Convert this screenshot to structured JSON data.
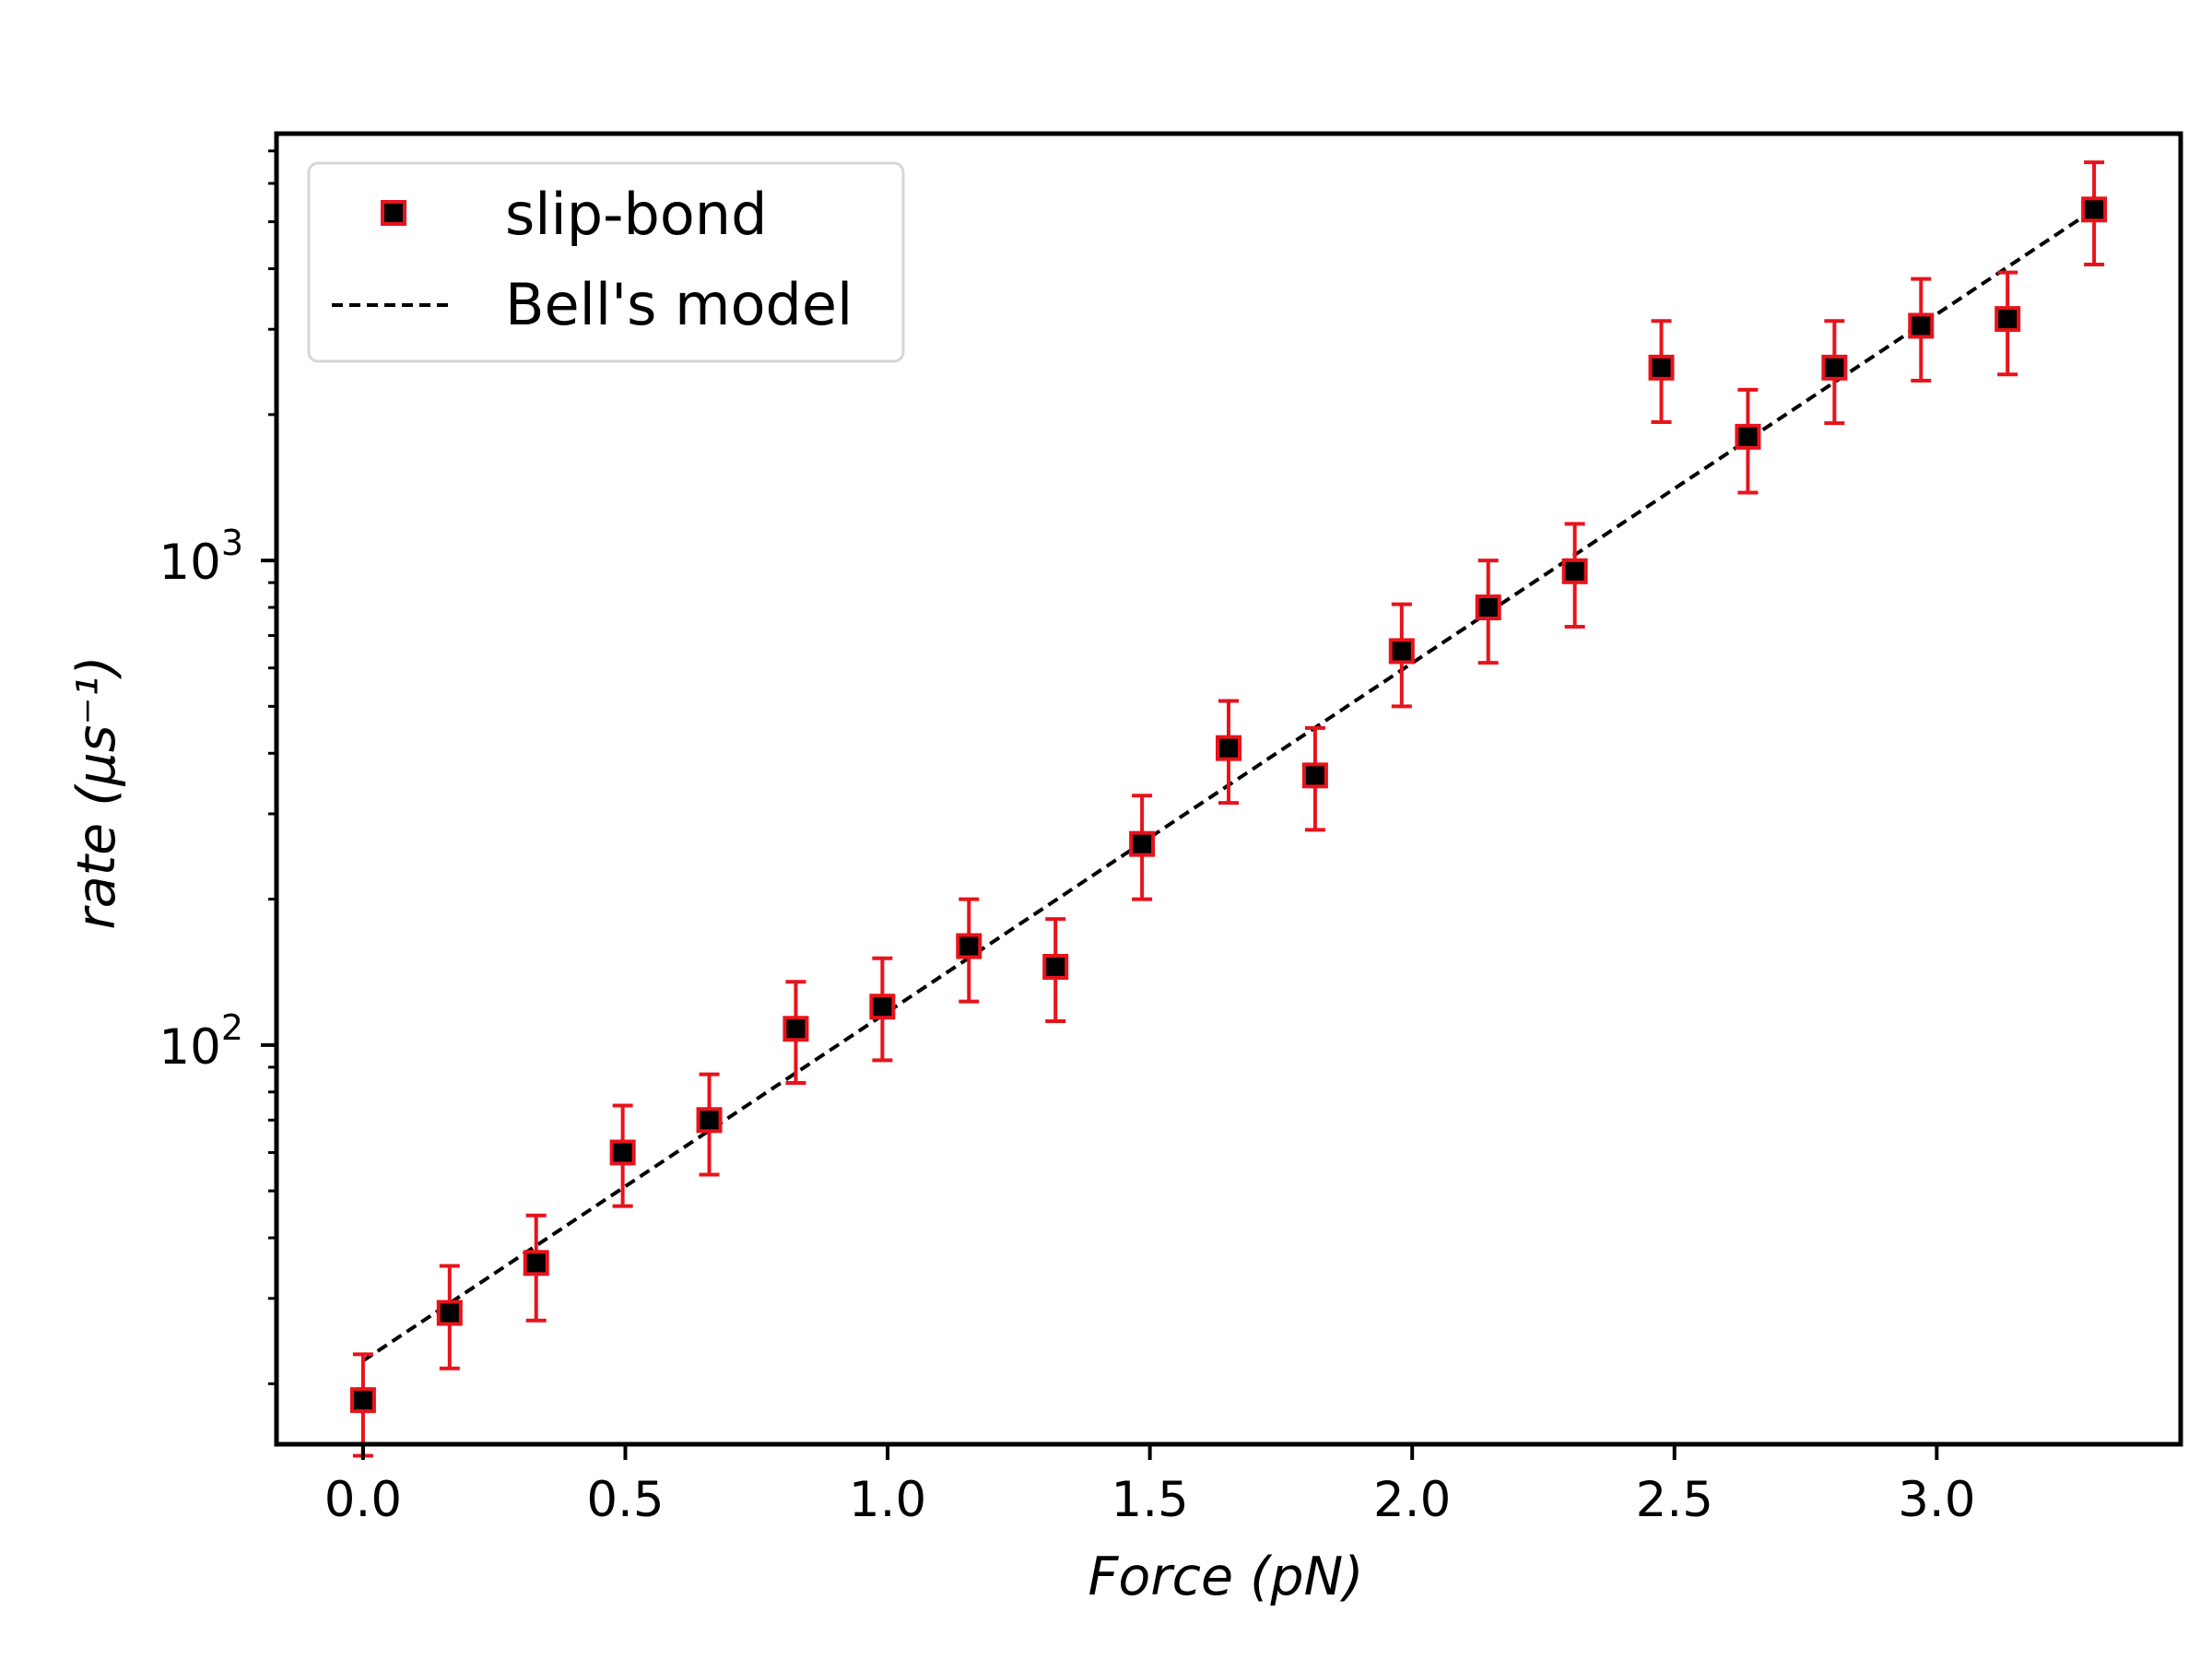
{
  "chart_data": {
    "type": "scatter",
    "title": "",
    "xlabel": "Force (pN)",
    "ylabel": "rate (μs⁻¹)",
    "xlim": [
      -0.165,
      3.465
    ],
    "ylim": [
      15,
      7600
    ],
    "yscale": "log",
    "x_ticks": [
      0.0,
      0.5,
      1.0,
      1.5,
      2.0,
      2.5,
      3.0
    ],
    "x_tick_labels": [
      "0.0",
      "0.5",
      "1.0",
      "1.5",
      "2.0",
      "2.5",
      "3.0"
    ],
    "y_ticks": [
      100,
      1000
    ],
    "y_tick_labels": [
      {
        "base": "10",
        "exp": "2"
      },
      {
        "base": "10",
        "exp": "3"
      }
    ],
    "grid": false,
    "legend": {
      "position": "top-left",
      "entries": [
        {
          "label": "slip-bond",
          "marker": "square",
          "color": "#000000",
          "edgecolor": "#e8131b"
        },
        {
          "label": "Bell's model",
          "style": "dashed",
          "color": "#000000"
        }
      ]
    },
    "series": [
      {
        "name": "slip-bond",
        "kind": "errorbar",
        "color": "#000000",
        "edgecolor": "#e8131b",
        "errorcolor": "#e8131b",
        "x": [
          0.0,
          0.165,
          0.33,
          0.495,
          0.66,
          0.825,
          0.99,
          1.155,
          1.32,
          1.485,
          1.65,
          1.815,
          1.98,
          2.145,
          2.31,
          2.475,
          2.64,
          2.805,
          2.97,
          3.135,
          3.3
        ],
        "y": [
          18.5,
          28,
          35.5,
          60,
          70,
          108,
          120,
          160,
          145,
          260,
          410,
          360,
          650,
          800,
          950,
          2500,
          1800,
          2500,
          3050,
          3150,
          5300
        ],
        "y_low": [
          14.2,
          21.5,
          27,
          46.5,
          54,
          83.5,
          93,
          123,
          112,
          200,
          316,
          278,
          500,
          615,
          730,
          1930,
          1380,
          1920,
          2350,
          2420,
          4080
        ],
        "y_high": [
          23,
          35,
          44.5,
          75,
          87,
          135,
          151,
          200,
          182,
          327,
          513,
          451,
          812,
          1000,
          1190,
          3120,
          2250,
          3120,
          3810,
          3930,
          6630
        ]
      },
      {
        "name": "Bell's model",
        "kind": "line",
        "style": "dashed",
        "color": "#000000",
        "x": [
          0.0,
          3.3
        ],
        "y": [
          22.3,
          5300
        ]
      }
    ]
  }
}
